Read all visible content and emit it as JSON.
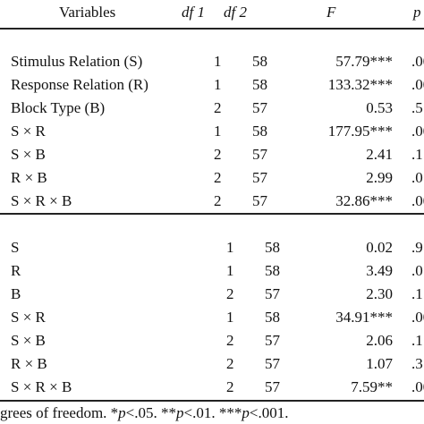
{
  "header": {
    "variables": "Variables",
    "df1": "df 1",
    "df2": "df 2",
    "f": "F",
    "p": "p"
  },
  "block1": [
    {
      "var": "Stimulus Relation (S)",
      "df1": "1",
      "df2": "58",
      "f": "57.79***",
      "p": ".00"
    },
    {
      "var": "Response Relation (R)",
      "df1": "1",
      "df2": "58",
      "f": "133.32***",
      "p": ".00"
    },
    {
      "var": "Block Type (B)",
      "df1": "2",
      "df2": "57",
      "f": "0.53",
      "p": ".5"
    },
    {
      "var": "S × R",
      "df1": "1",
      "df2": "58",
      "f": "177.95***",
      "p": ".00"
    },
    {
      "var": "S × B",
      "df1": "2",
      "df2": "57",
      "f": "2.41",
      "p": ".1"
    },
    {
      "var": "R × B",
      "df1": "2",
      "df2": "57",
      "f": "2.99",
      "p": ".0"
    },
    {
      "var": "S × R × B",
      "df1": "2",
      "df2": "57",
      "f": "32.86***",
      "p": ".00"
    }
  ],
  "block2": [
    {
      "var": "S",
      "df1": "1",
      "df2": "58",
      "f": "0.02",
      "p": ".9"
    },
    {
      "var": "R",
      "df1": "1",
      "df2": "58",
      "f": "3.49",
      "p": ".0"
    },
    {
      "var": "B",
      "df1": "2",
      "df2": "57",
      "f": "2.30",
      "p": ".1"
    },
    {
      "var": "S × R",
      "df1": "1",
      "df2": "58",
      "f": "34.91***",
      "p": ".00"
    },
    {
      "var": "S × B",
      "df1": "2",
      "df2": "57",
      "f": "2.06",
      "p": ".1"
    },
    {
      "var": "R × B",
      "df1": "2",
      "df2": "57",
      "f": "1.07",
      "p": ".3"
    },
    {
      "var": "S × R × B",
      "df1": "2",
      "df2": "57",
      "f": "7.59**",
      "p": ".00"
    }
  ],
  "footnote": {
    "lead": "grees of freedom. *",
    "p1": "p",
    "t1": "<.05. **",
    "p2": "p",
    "t2": "<.01. ***",
    "p3": "p",
    "t3": "<.001."
  }
}
